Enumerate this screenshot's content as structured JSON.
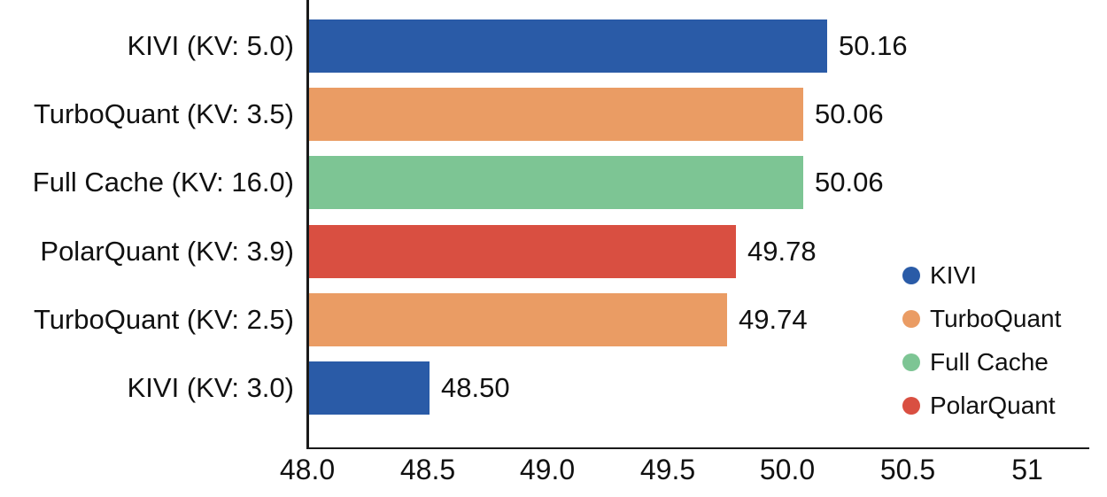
{
  "colors": {
    "background": "#ffffff",
    "axis": "#1a1a1a",
    "text": "#111111",
    "kivi_blue": "#2A5BA7",
    "turboquant_orange": "#EA9C64",
    "full_cache_green": "#7DC594",
    "polarquant_red": "#D94F41"
  },
  "chart_data": {
    "type": "bar",
    "orientation": "horizontal",
    "categories": [
      "KIVI (KV: 5.0)",
      "TurboQuant (KV: 3.5)",
      "Full Cache (KV: 16.0)",
      "PolarQuant (KV: 3.9)",
      "TurboQuant (KV: 2.5)",
      "KIVI (KV: 3.0)"
    ],
    "values": [
      50.16,
      50.06,
      50.06,
      49.78,
      49.74,
      48.5
    ],
    "value_labels": [
      "50.16",
      "50.06",
      "50.06",
      "49.78",
      "49.74",
      "48.50"
    ],
    "bar_series": [
      "KIVI",
      "TurboQuant",
      "Full Cache",
      "PolarQuant",
      "TurboQuant",
      "KIVI"
    ],
    "bar_colors": [
      "#2A5BA7",
      "#EA9C64",
      "#7DC594",
      "#D94F41",
      "#EA9C64",
      "#2A5BA7"
    ],
    "x_ticks": [
      "48.0",
      "48.5",
      "49.0",
      "49.5",
      "50.0",
      "50.5",
      "51"
    ],
    "x_tick_values": [
      48.0,
      48.5,
      49.0,
      49.5,
      50.0,
      50.5,
      51
    ],
    "xlim": [
      48.0,
      51.25
    ],
    "grid": false,
    "legend": {
      "position": "right",
      "entries": [
        {
          "label": "KIVI",
          "color": "#2A5BA7"
        },
        {
          "label": "TurboQuant",
          "color": "#EA9C64"
        },
        {
          "label": "Full Cache",
          "color": "#7DC594"
        },
        {
          "label": "PolarQuant",
          "color": "#D94F41"
        }
      ]
    }
  }
}
